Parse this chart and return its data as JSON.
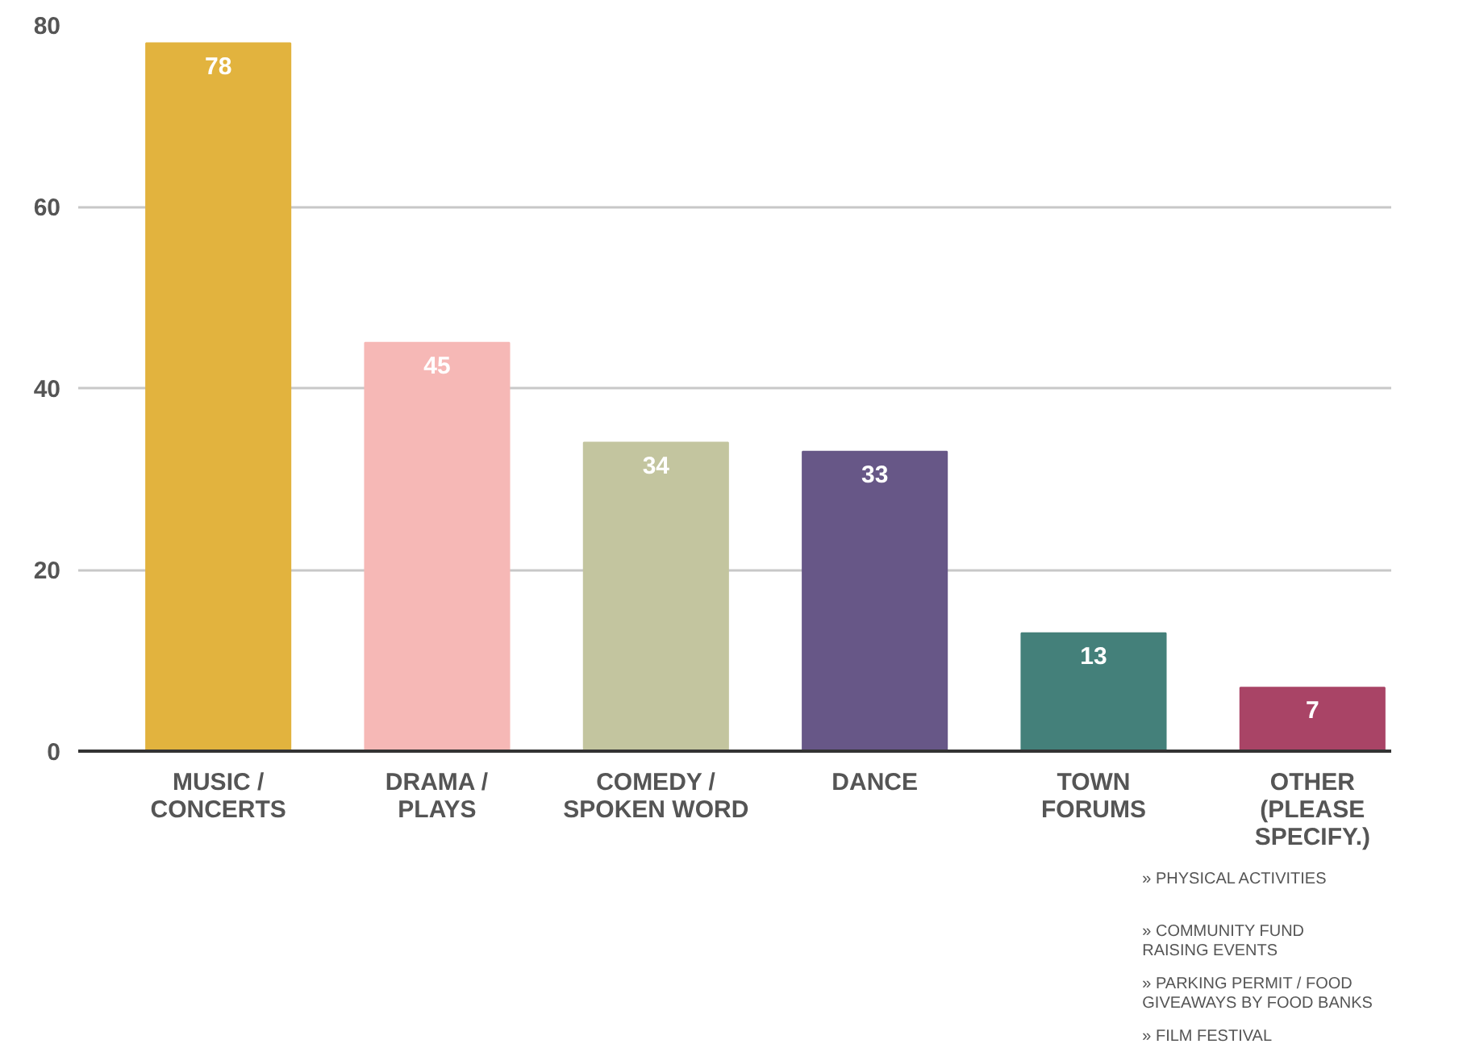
{
  "chart_data": {
    "type": "bar",
    "categories": [
      "MUSIC /\nCONCERTS",
      "DRAMA /\nPLAYS",
      "COMEDY /\nSPOKEN WORD",
      "DANCE",
      "TOWN\nFORUMS",
      "OTHER\n(PLEASE\nSPECIFY.)"
    ],
    "values": [
      78,
      45,
      34,
      33,
      13,
      7
    ],
    "colors": [
      "#e2b33e",
      "#f6b8b6",
      "#c3c59f",
      "#675787",
      "#44807a",
      "#a94466"
    ],
    "ylim": [
      0,
      80
    ],
    "yticks": [
      0,
      20,
      40,
      60,
      80
    ],
    "grid": "y",
    "data_labels": true,
    "annotations": [
      "» PHYSICAL ACTIVITIES",
      "» COMMUNITY FUND\n   RAISING EVENTS",
      "» PARKING PERMIT / FOOD\n   GIVEAWAYS BY FOOD BANKS",
      "» FILM FESTIVAL"
    ]
  }
}
